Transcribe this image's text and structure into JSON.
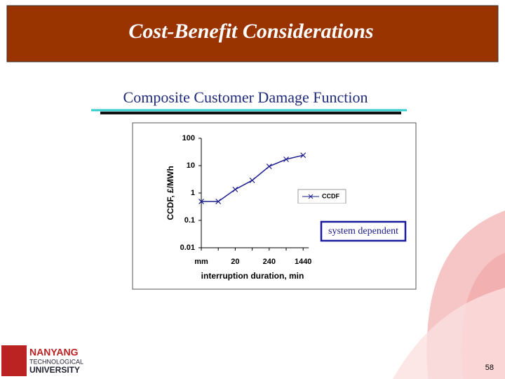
{
  "slide": {
    "title": "Cost-Benefit Considerations",
    "page_number": 58,
    "logo": [
      "NANYANG",
      "TECHNOLOGICAL",
      "UNIVERSITY"
    ]
  },
  "chart_data": {
    "type": "line",
    "title": "Composite Customer Damage Function",
    "x_label": "interruption duration, min",
    "y_label": "CCDF, £/MWh",
    "categories": [
      "mm",
      null,
      "20",
      null,
      "240",
      null,
      "1440"
    ],
    "series": [
      {
        "name": "CCDF",
        "color": "#1f1f8f",
        "values": [
          0.49,
          0.49,
          1.35,
          2.9,
          9.4,
          17,
          24
        ]
      }
    ],
    "ylim": [
      0.01,
      100
    ],
    "yticks": [
      0.01,
      0.1,
      1,
      10,
      100
    ],
    "log_y": true,
    "grid": false,
    "legend": "right",
    "annotation": "system dependent"
  }
}
